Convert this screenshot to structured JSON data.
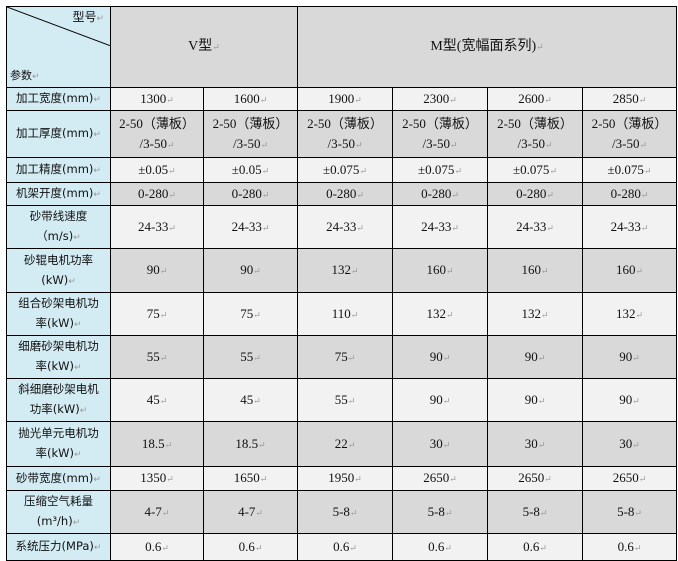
{
  "header": {
    "corner_top": "型号",
    "corner_bottom": "参数",
    "group_v": "V型",
    "group_m": "M型(宽幅面系列)"
  },
  "rows": [
    {
      "label": "加工宽度(mm)",
      "values": [
        "1300",
        "1600",
        "1900",
        "2300",
        "2600",
        "2850"
      ]
    },
    {
      "label": "加工厚度(mm)",
      "values": [
        "2-50（薄板）\n/3-50",
        "2-50（薄板）\n/3-50",
        "2-50（薄板）\n/3-50",
        "2-50（薄板）\n/3-50",
        "2-50（薄板）\n/3-50",
        "2-50（薄板）\n/3-50"
      ]
    },
    {
      "label": "加工精度(mm)",
      "values": [
        "±0.05",
        "±0.05",
        "±0.075",
        "±0.075",
        "±0.075",
        "±0.075"
      ]
    },
    {
      "label": "机架开度(mm)",
      "values": [
        "0-280",
        "0-280",
        "0-280",
        "0-280",
        "0-280",
        "0-280"
      ]
    },
    {
      "label": "砂带线速度（m/s)",
      "values": [
        "24-33",
        "24-33",
        "24-33",
        "24-33",
        "24-33",
        "24-33"
      ]
    },
    {
      "label": "砂辊电机功率\n(kW)",
      "values": [
        "90",
        "90",
        "132",
        "160",
        "160",
        "160"
      ]
    },
    {
      "label": "组合砂架电机功\n率(kW)",
      "values": [
        "75",
        "75",
        "110",
        "132",
        "132",
        "132"
      ]
    },
    {
      "label": "细磨砂架电机功\n率(kW)",
      "values": [
        "55",
        "55",
        "75",
        "90",
        "90",
        "90"
      ]
    },
    {
      "label": "斜细磨砂架电机\n功率(kW)",
      "values": [
        "45",
        "45",
        "55",
        "90",
        "90",
        "90"
      ]
    },
    {
      "label": "抛光单元电机功\n率(kW)",
      "values": [
        "18.5",
        "18.5",
        "22",
        "30",
        "30",
        "30"
      ]
    },
    {
      "label": "砂带宽度(mm)",
      "values": [
        "1350",
        "1650",
        "1950",
        "2650",
        "2650",
        "2650"
      ]
    },
    {
      "label": "压缩空气耗量\n(m³/h)",
      "values": [
        "4-7",
        "4-7",
        "5-8",
        "5-8",
        "5-8",
        "5-8"
      ]
    },
    {
      "label": "系统压力(MPa)",
      "values": [
        "0.6",
        "0.6",
        "0.6",
        "0.6",
        "0.6",
        "0.6"
      ]
    }
  ],
  "colors": {
    "label_bg": "#d3ebf3",
    "shade_dark": "#d9d9d9",
    "shade_light": "#f2f2f2"
  }
}
